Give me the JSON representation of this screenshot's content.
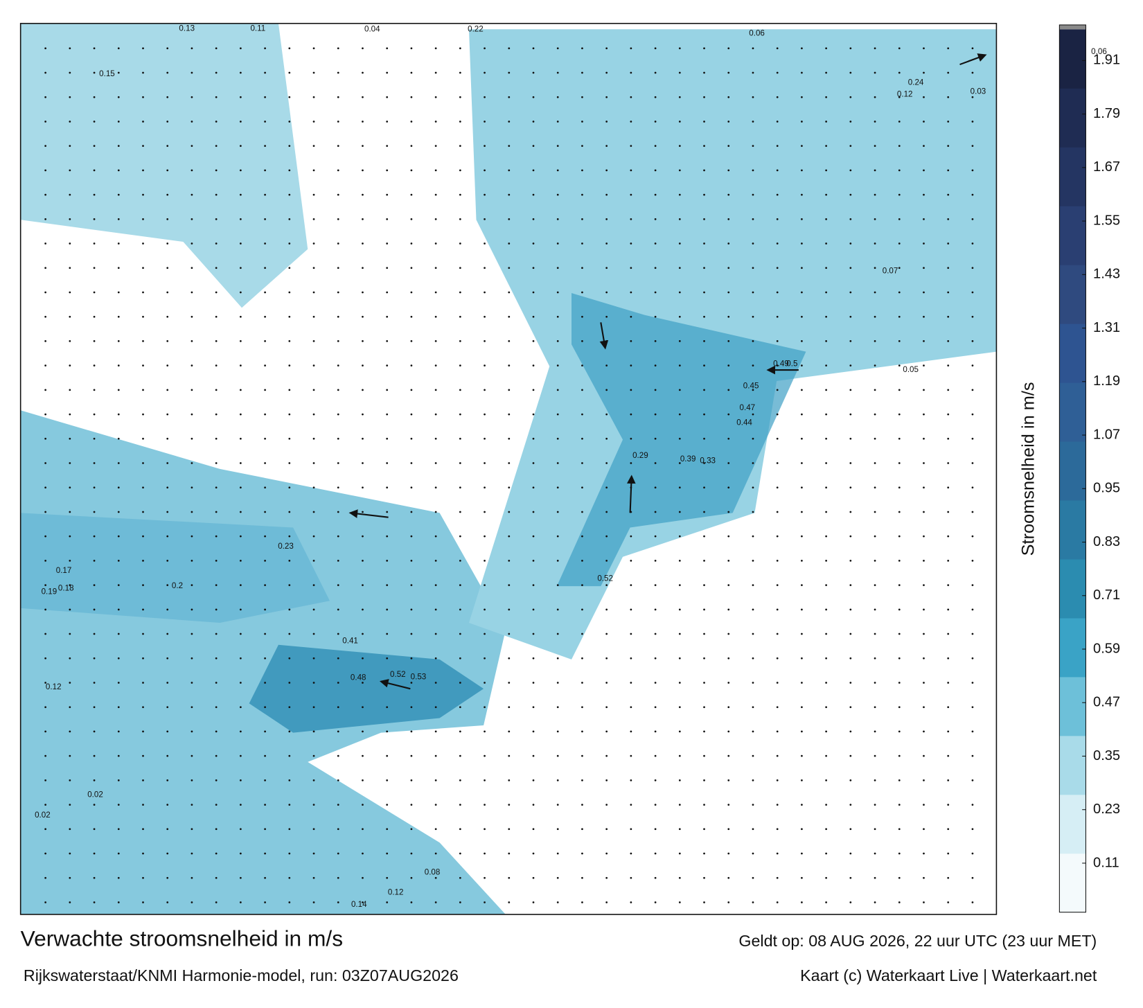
{
  "chart_data": {
    "type": "map",
    "title": "Verwachte stroomsnelheid in m/s",
    "subtitle": "Rijkswaterstaat/KNMI Harmonie-model, run: 03Z07AUG2026",
    "valid_time": "Geldt op: 08 AUG 2026, 22 uur UTC (23 uur MET)",
    "credit": "Kaart (c) Waterkaart Live | Waterkaart.net",
    "colorbar": {
      "label": "Stroomsnelheid in m/s",
      "lim": [
        0,
        1.98
      ],
      "ticks": [
        0.11,
        0.23,
        0.35,
        0.47,
        0.59,
        0.71,
        0.83,
        0.95,
        1.07,
        1.19,
        1.31,
        1.43,
        1.55,
        1.67,
        1.79,
        1.91
      ],
      "colors": [
        "#f4fafc",
        "#d6eef5",
        "#a9dbe9",
        "#6dc0d9",
        "#3aa3c6",
        "#2b8cb0",
        "#2a7aa3",
        "#2c6a9a",
        "#2f5f96",
        "#2e5491",
        "#2f4a7f",
        "#2a3f72",
        "#243562",
        "#1f2c53",
        "#1a2343"
      ]
    },
    "speed_labels": [
      "0.13",
      "0.11",
      "0.04",
      "0.22",
      "0.06",
      "0.15",
      "0.12",
      "0.24",
      "0.49",
      "0.5",
      "0.45",
      "0.47",
      "0.44",
      "0.29",
      "0.39",
      "0.33",
      "0.52",
      "0.41",
      "0.48",
      "0.52",
      "0.53",
      "0.17",
      "0.19",
      "0.18",
      "0.2",
      "0.23",
      "0.12",
      "0.02",
      "0.02",
      "0.14",
      "0.12",
      "0.08",
      "0.06",
      "0.03",
      "0.07",
      "0.05"
    ]
  }
}
